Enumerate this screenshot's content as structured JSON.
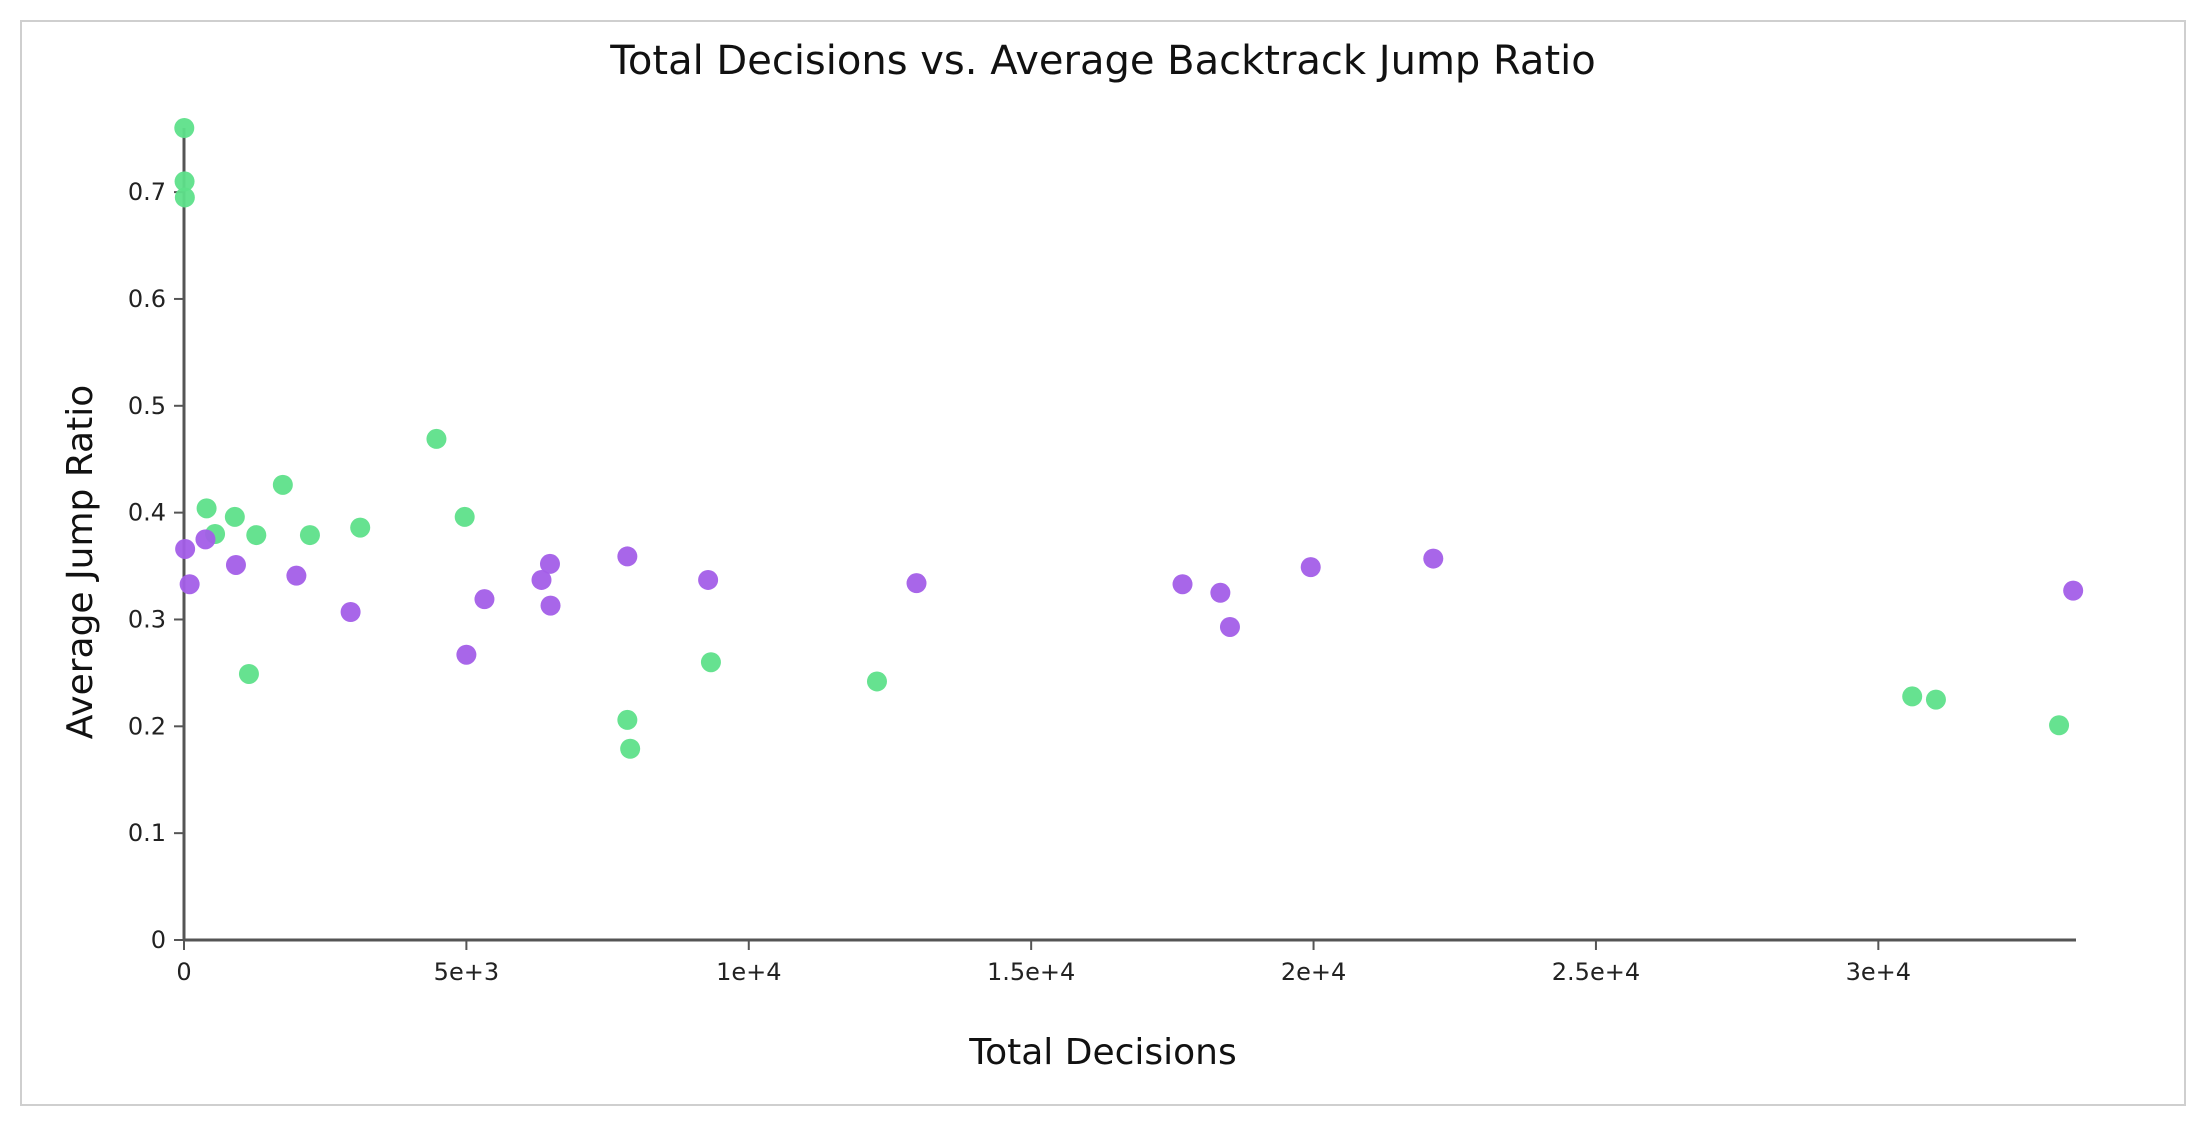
{
  "chart_data": {
    "type": "scatter",
    "title": "Total Decisions vs. Average Backtrack Jump Ratio",
    "xlabel": "Total Decisions",
    "ylabel": "Average Jump Ratio",
    "xlim": [
      0,
      33500
    ],
    "ylim": [
      0,
      0.76
    ],
    "x_ticks": [
      0,
      5000,
      10000,
      15000,
      20000,
      25000,
      30000
    ],
    "x_tick_labels": [
      "0",
      "5e+3",
      "1e+4",
      "1.5e+4",
      "2e+4",
      "2.5e+4",
      "3e+4"
    ],
    "y_ticks": [
      0,
      0.1,
      0.2,
      0.3,
      0.4,
      0.5,
      0.6,
      0.7
    ],
    "y_tick_labels": [
      "0",
      "0.1",
      "0.2",
      "0.3",
      "0.4",
      "0.5",
      "0.6",
      "0.7"
    ],
    "grid": false,
    "legend": "none",
    "series": [
      {
        "color": "#5ee08a",
        "points": [
          {
            "x": 5,
            "y": 0.76
          },
          {
            "x": 10,
            "y": 0.71
          },
          {
            "x": 15,
            "y": 0.695
          },
          {
            "x": 400,
            "y": 0.404
          },
          {
            "x": 550,
            "y": 0.38
          },
          {
            "x": 900,
            "y": 0.396
          },
          {
            "x": 1280,
            "y": 0.379
          },
          {
            "x": 1150,
            "y": 0.249
          },
          {
            "x": 1750,
            "y": 0.426
          },
          {
            "x": 2230,
            "y": 0.379
          },
          {
            "x": 3120,
            "y": 0.386
          },
          {
            "x": 4470,
            "y": 0.469
          },
          {
            "x": 4970,
            "y": 0.396
          },
          {
            "x": 7850,
            "y": 0.206
          },
          {
            "x": 7900,
            "y": 0.179
          },
          {
            "x": 9330,
            "y": 0.26
          },
          {
            "x": 12270,
            "y": 0.242
          },
          {
            "x": 30600,
            "y": 0.228
          },
          {
            "x": 31020,
            "y": 0.225
          },
          {
            "x": 33200,
            "y": 0.201
          }
        ]
      },
      {
        "color": "#a35ee8",
        "points": [
          {
            "x": 20,
            "y": 0.366
          },
          {
            "x": 100,
            "y": 0.333
          },
          {
            "x": 380,
            "y": 0.375
          },
          {
            "x": 920,
            "y": 0.351
          },
          {
            "x": 1990,
            "y": 0.341
          },
          {
            "x": 2950,
            "y": 0.307
          },
          {
            "x": 5000,
            "y": 0.267
          },
          {
            "x": 5320,
            "y": 0.319
          },
          {
            "x": 6330,
            "y": 0.337
          },
          {
            "x": 6480,
            "y": 0.352
          },
          {
            "x": 6490,
            "y": 0.313
          },
          {
            "x": 7850,
            "y": 0.359
          },
          {
            "x": 9280,
            "y": 0.337
          },
          {
            "x": 12970,
            "y": 0.334
          },
          {
            "x": 17680,
            "y": 0.333
          },
          {
            "x": 18350,
            "y": 0.325
          },
          {
            "x": 18520,
            "y": 0.293
          },
          {
            "x": 19950,
            "y": 0.349
          },
          {
            "x": 22120,
            "y": 0.357
          },
          {
            "x": 33450,
            "y": 0.327
          }
        ]
      }
    ]
  }
}
